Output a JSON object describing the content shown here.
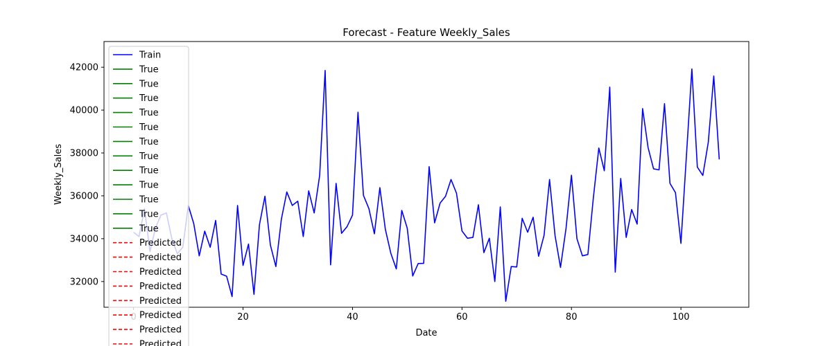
{
  "chart_data": {
    "type": "line",
    "title": "Forecast - Feature Weekly_Sales",
    "xlabel": "Date",
    "ylabel": "Weekly_Sales",
    "xlim": [
      -5.4,
      112.4
    ],
    "ylim": [
      30800,
      43200
    ],
    "x_ticks": [
      0,
      20,
      40,
      60,
      80,
      100
    ],
    "y_ticks": [
      32000,
      34000,
      36000,
      38000,
      40000,
      42000
    ],
    "grid": false,
    "legend_position": "upper-left",
    "legend": [
      {
        "label": "Train",
        "color": "#0000ff",
        "style": "solid"
      },
      {
        "label": "True",
        "color": "#008000",
        "style": "solid"
      },
      {
        "label": "True",
        "color": "#008000",
        "style": "solid"
      },
      {
        "label": "True",
        "color": "#008000",
        "style": "solid"
      },
      {
        "label": "True",
        "color": "#008000",
        "style": "solid"
      },
      {
        "label": "True",
        "color": "#008000",
        "style": "solid"
      },
      {
        "label": "True",
        "color": "#008000",
        "style": "solid"
      },
      {
        "label": "True",
        "color": "#008000",
        "style": "solid"
      },
      {
        "label": "True",
        "color": "#008000",
        "style": "solid"
      },
      {
        "label": "True",
        "color": "#008000",
        "style": "solid"
      },
      {
        "label": "True",
        "color": "#008000",
        "style": "solid"
      },
      {
        "label": "True",
        "color": "#008000",
        "style": "solid"
      },
      {
        "label": "True",
        "color": "#008000",
        "style": "solid"
      },
      {
        "label": "Predicted",
        "color": "#ff0000",
        "style": "dashed"
      },
      {
        "label": "Predicted",
        "color": "#ff0000",
        "style": "dashed"
      },
      {
        "label": "Predicted",
        "color": "#ff0000",
        "style": "dashed"
      },
      {
        "label": "Predicted",
        "color": "#ff0000",
        "style": "dashed"
      },
      {
        "label": "Predicted",
        "color": "#ff0000",
        "style": "dashed"
      },
      {
        "label": "Predicted",
        "color": "#ff0000",
        "style": "dashed"
      },
      {
        "label": "Predicted",
        "color": "#ff0000",
        "style": "dashed"
      },
      {
        "label": "Predicted",
        "color": "#ff0000",
        "style": "dashed"
      }
    ],
    "series": [
      {
        "name": "Train",
        "color": "#0000ff",
        "x": [
          0,
          1,
          2,
          3,
          4,
          5,
          6,
          7,
          8,
          9,
          10,
          11,
          12,
          13,
          14,
          15,
          16,
          17,
          18,
          19,
          20,
          21,
          22,
          23,
          24,
          25,
          26,
          27,
          28,
          29,
          30,
          31,
          32,
          33,
          34,
          35,
          36,
          37,
          38,
          39,
          40,
          41,
          42,
          43,
          44,
          45,
          46,
          47,
          48,
          49,
          50,
          51,
          52,
          53,
          54,
          55,
          56,
          57,
          58,
          59,
          60,
          61,
          62,
          63,
          64,
          65,
          66,
          67,
          68,
          69,
          70,
          71,
          72,
          73,
          74,
          75,
          76,
          77,
          78,
          79,
          80,
          81,
          82,
          83,
          84,
          85,
          86,
          87,
          88,
          89,
          90,
          91,
          92,
          93,
          94,
          95,
          96,
          97,
          98,
          99,
          100,
          101,
          102,
          103,
          104,
          105,
          106,
          107
        ],
        "y": [
          34300,
          34100,
          35400,
          33400,
          34500,
          35100,
          35200,
          34000,
          33300,
          33600,
          35550,
          34700,
          33200,
          34350,
          33600,
          34850,
          32350,
          32250,
          31300,
          35550,
          32750,
          33750,
          31400,
          34650,
          35980,
          33700,
          32700,
          34900,
          36180,
          35550,
          35750,
          34100,
          36230,
          35200,
          36950,
          41850,
          32780,
          36580,
          34250,
          34560,
          35100,
          39900,
          36020,
          35400,
          34230,
          36380,
          34440,
          33320,
          32590,
          35320,
          34490,
          32260,
          32840,
          32850,
          37360,
          34740,
          35660,
          35980,
          36760,
          36120,
          34360,
          34020,
          34060,
          35580,
          33350,
          34020,
          32000,
          35480,
          31080,
          32700,
          32680,
          34950,
          34300,
          35000,
          33180,
          34160,
          36760,
          34150,
          32660,
          34460,
          36960,
          34000,
          33200,
          33260,
          35900,
          38230,
          37170,
          41070,
          32440,
          36810,
          34060,
          35360,
          34680,
          40070,
          38250,
          37260,
          37210,
          40300,
          36580,
          36150,
          33780,
          37850,
          41920,
          37340,
          36950,
          38500,
          41590,
          37700
        ]
      }
    ]
  }
}
